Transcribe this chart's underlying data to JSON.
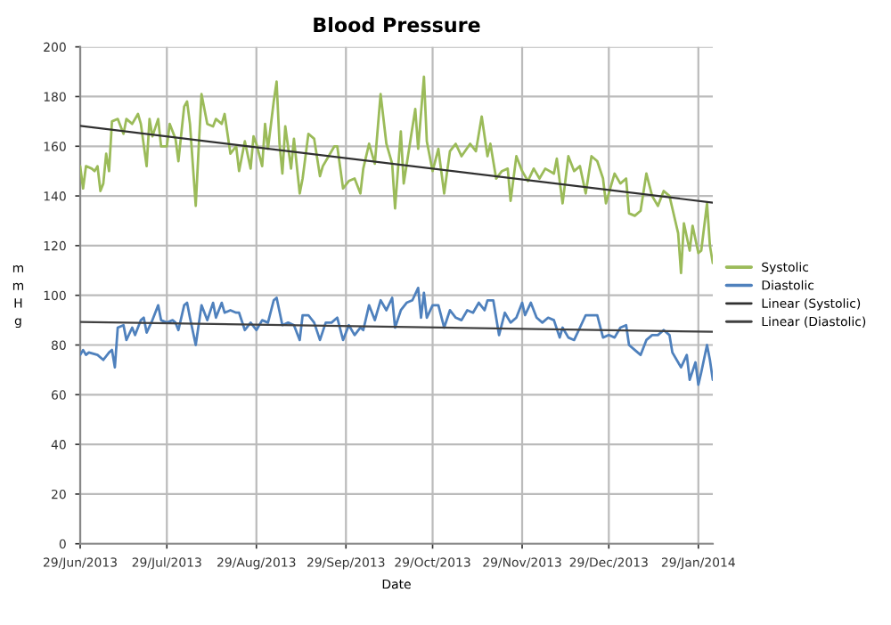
{
  "chart_data": {
    "type": "line",
    "title": "Blood Pressure",
    "xlabel": "Date",
    "ylabel": "mmHg",
    "xlim": [
      "2013-06-29",
      "2014-02-03"
    ],
    "ylim": [
      0,
      200
    ],
    "yticks": [
      0,
      20,
      40,
      60,
      80,
      100,
      120,
      140,
      160,
      180,
      200
    ],
    "xticks": [
      {
        "value": "2013-06-29",
        "label": "29/Jun/2013"
      },
      {
        "value": "2013-07-29",
        "label": "29/Jul/2013"
      },
      {
        "value": "2013-08-29",
        "label": "29/Aug/2013"
      },
      {
        "value": "2013-09-29",
        "label": "29/Sep/2013"
      },
      {
        "value": "2013-10-29",
        "label": "29/Oct/2013"
      },
      {
        "value": "2013-11-29",
        "label": "29/Nov/2013"
      },
      {
        "value": "2013-12-29",
        "label": "29/Dec/2013"
      },
      {
        "value": "2014-01-29",
        "label": "29/Jan/2014"
      }
    ],
    "grid": true,
    "legend": "right",
    "marker": "none",
    "line_style": "solid",
    "series": [
      {
        "name": "Systolic",
        "color": "#9bbb59",
        "x": [
          "2013-06-29",
          "2013-06-30",
          "2013-07-01",
          "2013-07-03",
          "2013-07-04",
          "2013-07-05",
          "2013-07-06",
          "2013-07-07",
          "2013-07-08",
          "2013-07-09",
          "2013-07-10",
          "2013-07-12",
          "2013-07-14",
          "2013-07-15",
          "2013-07-17",
          "2013-07-19",
          "2013-07-20",
          "2013-07-22",
          "2013-07-23",
          "2013-07-24",
          "2013-07-26",
          "2013-07-27",
          "2013-07-29",
          "2013-07-30",
          "2013-08-01",
          "2013-08-02",
          "2013-08-04",
          "2013-08-05",
          "2013-08-06",
          "2013-08-08",
          "2013-08-09",
          "2013-08-10",
          "2013-08-12",
          "2013-08-14",
          "2013-08-15",
          "2013-08-17",
          "2013-08-18",
          "2013-08-20",
          "2013-08-22",
          "2013-08-23",
          "2013-08-25",
          "2013-08-27",
          "2013-08-28",
          "2013-08-29",
          "2013-08-31",
          "2013-09-01",
          "2013-09-02",
          "2013-09-04",
          "2013-09-05",
          "2013-09-06",
          "2013-09-07",
          "2013-09-08",
          "2013-09-10",
          "2013-09-11",
          "2013-09-13",
          "2013-09-14",
          "2013-09-16",
          "2013-09-18",
          "2013-09-20",
          "2013-09-21",
          "2013-09-23",
          "2013-09-25",
          "2013-09-26",
          "2013-09-28",
          "2013-09-30",
          "2013-10-02",
          "2013-10-04",
          "2013-10-05",
          "2013-10-07",
          "2013-10-09",
          "2013-10-11",
          "2013-10-13",
          "2013-10-15",
          "2013-10-16",
          "2013-10-18",
          "2013-10-19",
          "2013-10-21",
          "2013-10-23",
          "2013-10-24",
          "2013-10-26",
          "2013-10-27",
          "2013-10-29",
          "2013-10-31",
          "2013-11-02",
          "2013-11-04",
          "2013-11-06",
          "2013-11-08",
          "2013-11-11",
          "2013-11-13",
          "2013-11-15",
          "2013-11-17",
          "2013-11-18",
          "2013-11-20",
          "2013-11-22",
          "2013-11-24",
          "2013-11-25",
          "2013-11-27",
          "2013-11-29",
          "2013-12-01",
          "2013-12-03",
          "2013-12-05",
          "2013-12-07",
          "2013-12-10",
          "2013-12-11",
          "2013-12-13",
          "2013-12-15",
          "2013-12-17",
          "2013-12-19",
          "2013-12-21",
          "2013-12-23",
          "2013-12-25",
          "2013-12-27",
          "2013-12-28",
          "2013-12-31",
          "2014-01-02",
          "2014-01-04",
          "2014-01-05",
          "2014-01-07",
          "2014-01-09",
          "2014-01-11",
          "2014-01-13",
          "2014-01-15",
          "2014-01-17",
          "2014-01-19",
          "2014-01-20",
          "2014-01-22",
          "2014-01-23",
          "2014-01-24",
          "2014-01-26",
          "2014-01-27",
          "2014-01-29",
          "2014-01-30",
          "2014-02-01",
          "2014-02-02",
          "2014-02-03"
        ],
        "values": [
          152,
          143,
          152,
          151,
          150,
          152,
          142,
          145,
          157,
          150,
          170,
          171,
          165,
          171,
          169,
          173,
          169,
          152,
          171,
          164,
          171,
          160,
          160,
          169,
          163,
          154,
          176,
          178,
          169,
          136,
          159,
          181,
          169,
          168,
          171,
          169,
          173,
          157,
          160,
          150,
          162,
          151,
          164,
          161,
          152,
          169,
          159,
          178,
          186,
          161,
          149,
          168,
          151,
          163,
          141,
          147,
          165,
          163,
          148,
          152,
          156,
          160,
          160,
          143,
          146,
          147,
          141,
          151,
          161,
          153,
          181,
          161,
          153,
          135,
          166,
          145,
          160,
          175,
          159,
          188,
          162,
          150,
          159,
          141,
          158,
          161,
          156,
          161,
          158,
          172,
          156,
          161,
          147,
          150,
          151,
          138,
          156,
          150,
          146,
          151,
          147,
          151,
          149,
          155,
          137,
          156,
          150,
          152,
          141,
          156,
          154,
          147,
          137,
          149,
          145,
          147,
          133,
          132,
          134,
          149,
          140,
          136,
          142,
          140,
          135,
          125,
          109,
          129,
          118,
          128,
          117,
          118,
          137,
          120,
          113
        ]
      },
      {
        "name": "Diastolic",
        "color": "#4f81bd",
        "x": [
          "2013-06-29",
          "2013-06-30",
          "2013-07-01",
          "2013-07-02",
          "2013-07-05",
          "2013-07-07",
          "2013-07-09",
          "2013-07-10",
          "2013-07-11",
          "2013-07-12",
          "2013-07-14",
          "2013-07-15",
          "2013-07-17",
          "2013-07-18",
          "2013-07-20",
          "2013-07-21",
          "2013-07-22",
          "2013-07-24",
          "2013-07-26",
          "2013-07-27",
          "2013-07-29",
          "2013-07-31",
          "2013-08-01",
          "2013-08-02",
          "2013-08-04",
          "2013-08-05",
          "2013-08-06",
          "2013-08-08",
          "2013-08-09",
          "2013-08-10",
          "2013-08-12",
          "2013-08-14",
          "2013-08-15",
          "2013-08-17",
          "2013-08-18",
          "2013-08-20",
          "2013-08-22",
          "2013-08-23",
          "2013-08-25",
          "2013-08-27",
          "2013-08-29",
          "2013-08-31",
          "2013-09-02",
          "2013-09-04",
          "2013-09-05",
          "2013-09-07",
          "2013-09-09",
          "2013-09-11",
          "2013-09-13",
          "2013-09-14",
          "2013-09-16",
          "2013-09-18",
          "2013-09-20",
          "2013-09-22",
          "2013-09-24",
          "2013-09-26",
          "2013-09-28",
          "2013-09-30",
          "2013-10-02",
          "2013-10-04",
          "2013-10-05",
          "2013-10-07",
          "2013-10-09",
          "2013-10-11",
          "2013-10-13",
          "2013-10-15",
          "2013-10-16",
          "2013-10-18",
          "2013-10-20",
          "2013-10-22",
          "2013-10-24",
          "2013-10-25",
          "2013-10-26",
          "2013-10-27",
          "2013-10-29",
          "2013-10-31",
          "2013-11-02",
          "2013-11-04",
          "2013-11-06",
          "2013-11-08",
          "2013-11-10",
          "2013-11-12",
          "2013-11-14",
          "2013-11-16",
          "2013-11-17",
          "2013-11-19",
          "2013-11-21",
          "2013-11-23",
          "2013-11-25",
          "2013-11-27",
          "2013-11-29",
          "2013-11-30",
          "2013-12-02",
          "2013-12-04",
          "2013-12-06",
          "2013-12-08",
          "2013-12-10",
          "2013-12-12",
          "2013-12-13",
          "2013-12-15",
          "2013-12-17",
          "2013-12-19",
          "2013-12-21",
          "2013-12-23",
          "2013-12-25",
          "2013-12-27",
          "2013-12-29",
          "2013-12-31",
          "2014-01-02",
          "2014-01-04",
          "2014-01-05",
          "2014-01-07",
          "2014-01-09",
          "2014-01-11",
          "2014-01-13",
          "2014-01-15",
          "2014-01-17",
          "2014-01-19",
          "2014-01-20",
          "2014-01-22",
          "2014-01-23",
          "2014-01-25",
          "2014-01-26",
          "2014-01-28",
          "2014-01-29",
          "2014-01-30",
          "2014-02-01",
          "2014-02-02",
          "2014-02-03"
        ],
        "values": [
          76,
          78,
          76,
          77,
          76,
          74,
          77,
          78,
          71,
          87,
          88,
          82,
          87,
          84,
          90,
          91,
          85,
          90,
          96,
          90,
          89,
          90,
          89,
          86,
          96,
          97,
          91,
          80,
          88,
          96,
          90,
          97,
          91,
          97,
          93,
          94,
          93,
          93,
          86,
          89,
          86,
          90,
          89,
          98,
          99,
          88,
          89,
          88,
          82,
          92,
          92,
          89,
          82,
          89,
          89,
          91,
          82,
          88,
          84,
          87,
          86,
          96,
          90,
          98,
          94,
          99,
          87,
          94,
          97,
          98,
          103,
          91,
          101,
          91,
          96,
          96,
          87,
          94,
          91,
          90,
          94,
          93,
          97,
          94,
          98,
          98,
          84,
          93,
          89,
          91,
          97,
          92,
          97,
          91,
          89,
          91,
          90,
          83,
          87,
          83,
          82,
          87,
          92,
          92,
          92,
          83,
          84,
          83,
          87,
          88,
          80,
          78,
          76,
          82,
          84,
          84,
          86,
          84,
          77,
          73,
          71,
          76,
          66,
          73,
          64,
          69,
          80,
          74,
          66
        ]
      },
      {
        "name": "Linear (Systolic)",
        "color": "#303030",
        "x": [
          "2013-06-29",
          "2014-02-03"
        ],
        "values": [
          168.2,
          137.3
        ]
      },
      {
        "name": "Linear (Diastolic)",
        "color": "#404040",
        "x": [
          "2013-06-29",
          "2014-02-03"
        ],
        "values": [
          89.3,
          85.3
        ]
      }
    ]
  }
}
